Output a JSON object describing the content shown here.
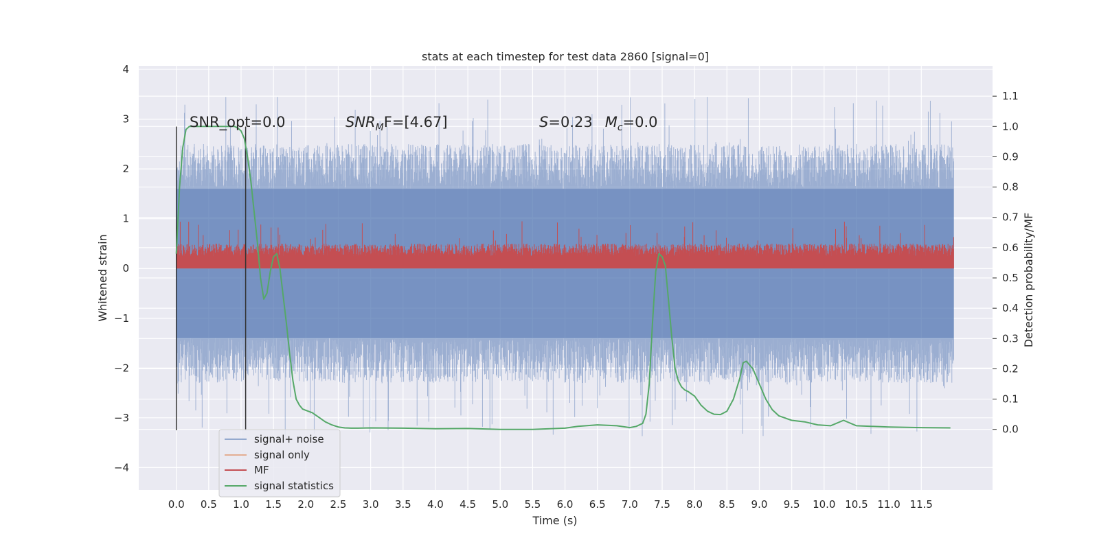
{
  "chart_data": {
    "type": "line",
    "title": "stats at each timestep for test data 2860 [signal=0]",
    "xlabel": "Time (s)",
    "ylabel": "Whitened strain",
    "ylabel_right": "Detection probability/MF",
    "xlim": [
      -0.58,
      12.6
    ],
    "ylim": [
      -4.45,
      4.07
    ],
    "ylim_right": [
      -0.2,
      1.2
    ],
    "xticks": [
      0.0,
      0.5,
      1.0,
      1.5,
      2.0,
      2.5,
      3.0,
      3.5,
      4.0,
      4.5,
      5.0,
      5.5,
      6.0,
      6.5,
      7.0,
      7.5,
      8.0,
      8.5,
      9.0,
      9.5,
      10.0,
      10.5,
      11.0,
      11.5
    ],
    "xtick_labels": [
      "0.0",
      "0.5",
      "1.0",
      "1.5",
      "2.0",
      "2.5",
      "3.0",
      "3.5",
      "4.0",
      "4.5",
      "5.0",
      "5.5",
      "6.0",
      "6.5",
      "7.0",
      "7.5",
      "8.0",
      "8.5",
      "9.0",
      "9.5",
      "10.0",
      "10.5",
      "11.0",
      "11.5"
    ],
    "yticks": [
      -4,
      -3,
      -2,
      -1,
      0,
      1,
      2,
      3,
      4
    ],
    "ytick_labels": [
      "−4",
      "−3",
      "−2",
      "−1",
      "0",
      "1",
      "2",
      "3",
      "4"
    ],
    "yticks_right": [
      0.0,
      0.1,
      0.2,
      0.3,
      0.4,
      0.5,
      0.6,
      0.7,
      0.8,
      0.9,
      1.0,
      1.1
    ],
    "ytick_labels_right": [
      "0.0",
      "0.1",
      "0.2",
      "0.3",
      "0.4",
      "0.5",
      "0.6",
      "0.7",
      "0.8",
      "0.9",
      "1.0",
      "1.1"
    ],
    "grid": true,
    "legend_position": "lower-left",
    "legend": [
      "signal+ noise",
      "signal only",
      "MF",
      "signal statistics"
    ],
    "annotations": {
      "snr_opt": "SNR_opt=0.0",
      "snr_mf_main": "SNR",
      "snr_mf_sub": "M",
      "snr_mf_rest": "F=[4.67]",
      "s_main": "S",
      "s_rest": "=0.23",
      "mc_main": "M",
      "mc_sub": "c",
      "mc_rest": "=0.0"
    },
    "vertical_markers_x": [
      0.0,
      1.07
    ],
    "noise_band": {
      "t_range": [
        0.0,
        12.0
      ],
      "typical_range": [
        -1.4,
        1.6
      ],
      "envelope_max": 3.5,
      "envelope_min": -3.4
    },
    "mf_band": {
      "t_range": [
        0.0,
        12.0
      ],
      "baseline": 0.0,
      "typical_max": 0.5,
      "peak_max": 0.95
    },
    "series": [
      {
        "name": "signal statistics",
        "axis": "right",
        "x": [
          0.0,
          0.05,
          0.1,
          0.15,
          0.2,
          0.3,
          0.4,
          0.5,
          0.6,
          0.7,
          0.8,
          0.9,
          0.95,
          1.0,
          1.05,
          1.1,
          1.15,
          1.2,
          1.25,
          1.3,
          1.35,
          1.4,
          1.45,
          1.5,
          1.55,
          1.6,
          1.65,
          1.7,
          1.75,
          1.8,
          1.85,
          1.9,
          1.95,
          2.0,
          2.1,
          2.2,
          2.3,
          2.4,
          2.5,
          2.6,
          2.7,
          2.8,
          3.0,
          3.5,
          4.0,
          4.5,
          5.0,
          5.5,
          6.0,
          6.2,
          6.5,
          6.8,
          7.0,
          7.1,
          7.2,
          7.25,
          7.3,
          7.35,
          7.4,
          7.45,
          7.5,
          7.55,
          7.6,
          7.65,
          7.7,
          7.75,
          7.8,
          7.85,
          7.9,
          8.0,
          8.1,
          8.2,
          8.3,
          8.4,
          8.5,
          8.6,
          8.7,
          8.75,
          8.8,
          8.9,
          9.0,
          9.1,
          9.2,
          9.3,
          9.5,
          9.7,
          9.9,
          10.1,
          10.3,
          10.5,
          11.0,
          11.5,
          11.95
        ],
        "y": [
          0.58,
          0.8,
          0.93,
          0.99,
          1.0,
          1.0,
          1.0,
          1.0,
          1.0,
          1.0,
          1.0,
          1.0,
          0.995,
          0.985,
          0.96,
          0.9,
          0.82,
          0.72,
          0.62,
          0.5,
          0.43,
          0.45,
          0.52,
          0.57,
          0.58,
          0.53,
          0.44,
          0.35,
          0.25,
          0.16,
          0.1,
          0.08,
          0.067,
          0.063,
          0.055,
          0.04,
          0.025,
          0.015,
          0.008,
          0.005,
          0.004,
          0.004,
          0.005,
          0.004,
          0.002,
          0.003,
          0.0,
          0.0,
          0.004,
          0.01,
          0.015,
          0.012,
          0.006,
          0.01,
          0.02,
          0.05,
          0.15,
          0.35,
          0.52,
          0.58,
          0.57,
          0.54,
          0.42,
          0.3,
          0.2,
          0.16,
          0.14,
          0.13,
          0.125,
          0.11,
          0.08,
          0.06,
          0.05,
          0.049,
          0.06,
          0.1,
          0.17,
          0.22,
          0.225,
          0.2,
          0.15,
          0.1,
          0.065,
          0.045,
          0.03,
          0.025,
          0.015,
          0.012,
          0.03,
          0.012,
          0.008,
          0.006,
          0.005
        ]
      }
    ]
  },
  "colors": {
    "background": "#eaeaf2",
    "grid": "#ffffff",
    "signal_noise": "#4c72b0",
    "signal_only": "#dd8452",
    "mf": "#c44e52",
    "signal_statistics": "#55a868",
    "marker": "#333333"
  }
}
